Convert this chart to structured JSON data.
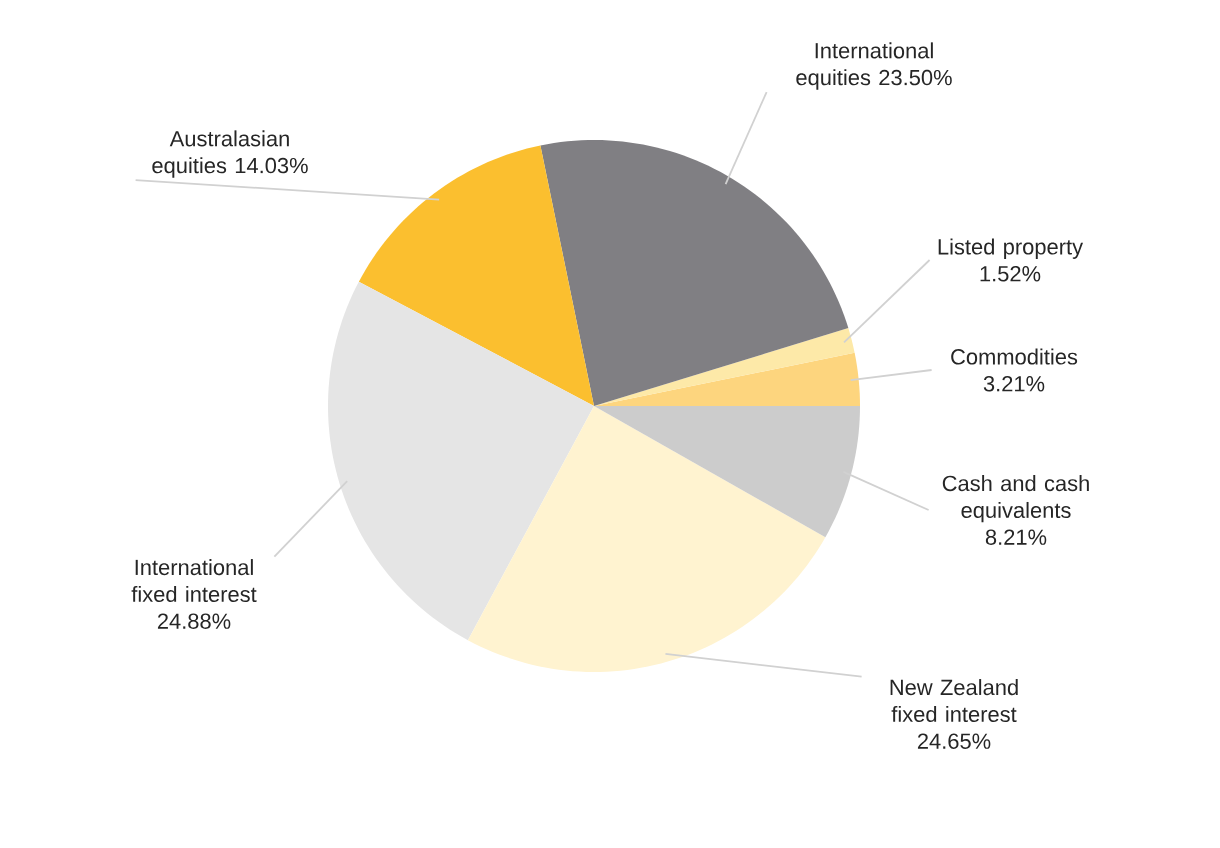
{
  "chart_data": {
    "type": "pie",
    "categories": [
      "Commodities",
      "Listed property",
      "International equities",
      "Australasian equities",
      "International fixed interest",
      "New Zealand fixed interest",
      "Cash and cash equivalents"
    ],
    "values": [
      3.21,
      1.52,
      23.5,
      14.03,
      24.88,
      24.65,
      8.21
    ],
    "value_labels": [
      "3.21%",
      "1.52%",
      "23.50%",
      "14.03%",
      "24.88%",
      "24.65%",
      "8.21%"
    ],
    "colors": [
      "#fdd57e",
      "#fde9a8",
      "#807f83",
      "#fbbf2f",
      "#e5e5e5",
      "#fff3d0",
      "#cccccc"
    ]
  }
}
